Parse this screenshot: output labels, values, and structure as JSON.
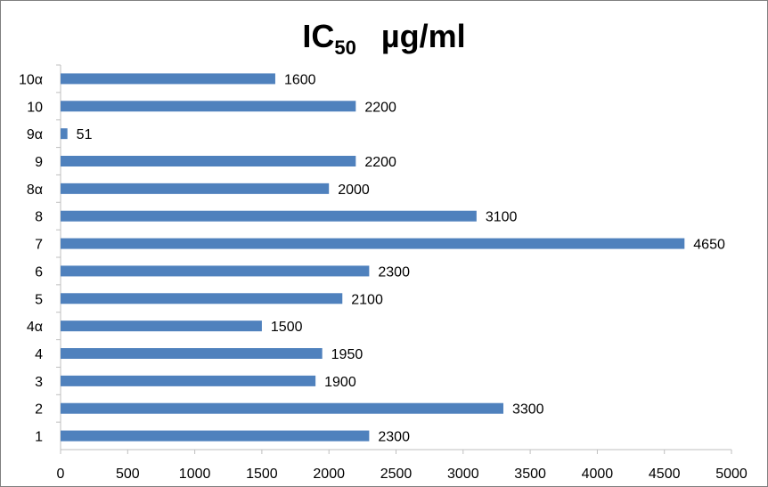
{
  "chart_data": {
    "type": "bar",
    "orientation": "horizontal",
    "title_main": "IC",
    "title_sub": "50",
    "title_unit": "µg/ml",
    "categories": [
      "1",
      "2",
      "3",
      "4",
      "4α",
      "5",
      "6",
      "7",
      "8",
      "8α",
      "9",
      "9α",
      "10",
      "10α"
    ],
    "values": [
      2300,
      3300,
      1900,
      1950,
      1500,
      2100,
      2300,
      4650,
      3100,
      2000,
      2200,
      51,
      2200,
      1600
    ],
    "data_labels": [
      "2300",
      "3300",
      "1900",
      "1950",
      "1500",
      "2100",
      "2300",
      "4650",
      "3100",
      "2000",
      "2200",
      "51",
      "2200",
      "1600"
    ],
    "x_ticks": [
      "0",
      "500",
      "1000",
      "1500",
      "2000",
      "2500",
      "3000",
      "3500",
      "4000",
      "4500",
      "5000"
    ],
    "xlim": [
      0,
      5000
    ],
    "grid": false,
    "legend": "none",
    "bar_color": "#4f81bd",
    "axis_color": "#bfbfbf"
  }
}
